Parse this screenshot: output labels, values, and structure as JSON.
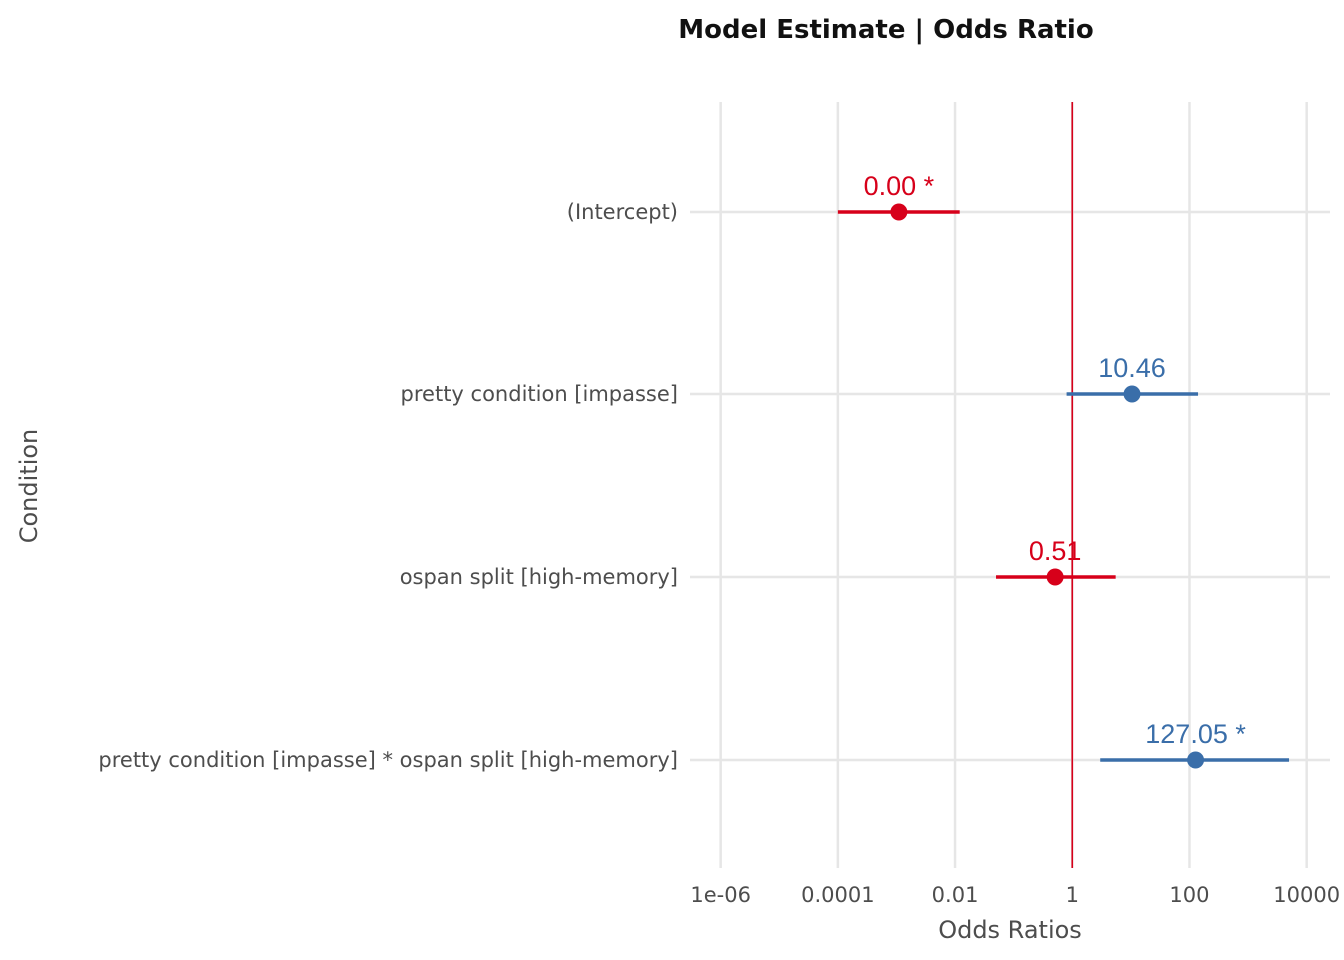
{
  "chart_data": {
    "type": "forest",
    "title": "Model Estimate | Odds Ratio",
    "xlabel": "Odds Ratios",
    "ylabel": "Condition",
    "x_scale": "log10",
    "xlim": [
      3e-07,
      25000
    ],
    "x_ticks": [
      1e-06,
      0.0001,
      0.01,
      1,
      100,
      10000
    ],
    "x_tick_labels": [
      "1e-06",
      "0.0001",
      "0.01",
      "1",
      "100",
      "10000"
    ],
    "reference_line": 1,
    "grid": true,
    "terms": [
      {
        "label": "(Intercept)",
        "estimate": 0.0011,
        "ci_low": 0.0001,
        "ci_high": 0.012,
        "value_label": "0.00 *",
        "color": "#d7001a"
      },
      {
        "label": "pretty condition [impasse]",
        "estimate": 10.46,
        "ci_low": 0.8,
        "ci_high": 140,
        "value_label": "10.46",
        "color": "#3a6ea9"
      },
      {
        "label": "ospan split [high-memory]",
        "estimate": 0.51,
        "ci_low": 0.05,
        "ci_high": 5.5,
        "value_label": "0.51",
        "color": "#d7001a"
      },
      {
        "label": "pretty condition [impasse] * ospan split [high-memory]",
        "estimate": 127.05,
        "ci_low": 3.0,
        "ci_high": 5000,
        "value_label": "127.05 *",
        "color": "#3a6ea9"
      }
    ],
    "colors": {
      "reference_line": "#d7001a",
      "positive": "#3a6ea9",
      "negative": "#d7001a",
      "grid": "#e6e6e6"
    }
  }
}
